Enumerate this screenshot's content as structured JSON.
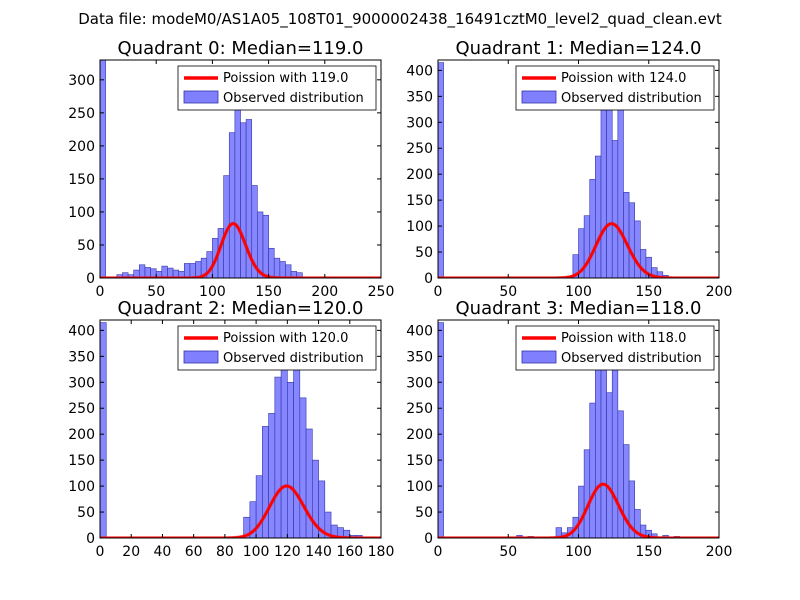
{
  "figure_title": "Data file: modeM0/AS1A05_108T01_9000002438_16491cztM0_level2_quad_clean.evt",
  "colors": {
    "bar_fill": "#8080ff",
    "bar_stroke": "#3333aa",
    "curve": "#ff0000",
    "curve_highlight": "#f08080"
  },
  "chart_data": [
    {
      "type": "bar",
      "title": "Quadrant 0: Median=119.0",
      "xlabel": "",
      "ylabel": "",
      "xlim": [
        0,
        250
      ],
      "ylim": [
        0,
        330
      ],
      "xticks": [
        0,
        50,
        100,
        150,
        200,
        250
      ],
      "yticks": [
        0,
        50,
        100,
        150,
        200,
        250,
        300
      ],
      "xtick_labels": [
        "0",
        "50",
        "100",
        "150",
        "200",
        "250"
      ],
      "ytick_labels": [
        "0",
        "50",
        "100",
        "150",
        "200",
        "250",
        "300"
      ],
      "legend": {
        "position": "top-right",
        "line_label": "Poission with 119.0",
        "bar_label": "Observed distribution"
      },
      "bin_width": 5,
      "bins": [
        [
          0,
          330
        ],
        [
          15,
          5
        ],
        [
          20,
          8
        ],
        [
          25,
          5
        ],
        [
          30,
          12
        ],
        [
          35,
          20
        ],
        [
          40,
          16
        ],
        [
          45,
          14
        ],
        [
          50,
          10
        ],
        [
          55,
          18
        ],
        [
          60,
          15
        ],
        [
          65,
          12
        ],
        [
          70,
          10
        ],
        [
          75,
          22
        ],
        [
          80,
          22
        ],
        [
          85,
          25
        ],
        [
          90,
          30
        ],
        [
          95,
          40
        ],
        [
          100,
          60
        ],
        [
          105,
          75
        ],
        [
          110,
          155
        ],
        [
          115,
          220
        ],
        [
          120,
          300
        ],
        [
          125,
          235
        ],
        [
          130,
          240
        ],
        [
          135,
          140
        ],
        [
          140,
          100
        ],
        [
          145,
          95
        ],
        [
          150,
          45
        ],
        [
          155,
          30
        ],
        [
          160,
          25
        ],
        [
          165,
          20
        ],
        [
          170,
          10
        ],
        [
          175,
          8
        ]
      ],
      "poisson_mean": 119.0,
      "poisson_scale": 2250
    },
    {
      "type": "bar",
      "title": "Quadrant 1: Median=124.0",
      "xlabel": "",
      "ylabel": "",
      "xlim": [
        0,
        200
      ],
      "ylim": [
        0,
        420
      ],
      "xticks": [
        0,
        50,
        100,
        150,
        200
      ],
      "yticks": [
        0,
        50,
        100,
        150,
        200,
        250,
        300,
        350,
        400
      ],
      "xtick_labels": [
        "0",
        "50",
        "100",
        "150",
        "200"
      ],
      "ytick_labels": [
        "0",
        "50",
        "100",
        "150",
        "200",
        "250",
        "300",
        "350",
        "400"
      ],
      "legend": {
        "position": "top-right",
        "line_label": "Poission with 124.0",
        "bar_label": "Observed distribution"
      },
      "bin_width": 4,
      "bins": [
        [
          0,
          415
        ],
        [
          96,
          45
        ],
        [
          100,
          95
        ],
        [
          104,
          120
        ],
        [
          108,
          190
        ],
        [
          112,
          235
        ],
        [
          116,
          330
        ],
        [
          120,
          390
        ],
        [
          124,
          265
        ],
        [
          128,
          390
        ],
        [
          132,
          165
        ],
        [
          136,
          145
        ],
        [
          140,
          110
        ],
        [
          144,
          55
        ],
        [
          148,
          40
        ],
        [
          152,
          20
        ],
        [
          156,
          12
        ],
        [
          160,
          5
        ]
      ],
      "poisson_mean": 124.0,
      "poisson_scale": 2920
    },
    {
      "type": "bar",
      "title": "Quadrant 2: Median=120.0",
      "xlabel": "",
      "ylabel": "",
      "xlim": [
        0,
        180
      ],
      "ylim": [
        0,
        420
      ],
      "xticks": [
        0,
        20,
        40,
        60,
        80,
        100,
        120,
        140,
        160,
        180
      ],
      "yticks": [
        0,
        50,
        100,
        150,
        200,
        250,
        300,
        350,
        400
      ],
      "xtick_labels": [
        "0",
        "20",
        "40",
        "60",
        "80",
        "100",
        "120",
        "140",
        "160",
        "180"
      ],
      "ytick_labels": [
        "0",
        "50",
        "100",
        "150",
        "200",
        "250",
        "300",
        "350",
        "400"
      ],
      "legend": {
        "position": "top-right",
        "line_label": "Poission with 120.0",
        "bar_label": "Observed distribution"
      },
      "bin_width": 4,
      "bins": [
        [
          0,
          415
        ],
        [
          92,
          40
        ],
        [
          96,
          70
        ],
        [
          100,
          120
        ],
        [
          104,
          215
        ],
        [
          108,
          240
        ],
        [
          112,
          310
        ],
        [
          116,
          375
        ],
        [
          120,
          300
        ],
        [
          124,
          390
        ],
        [
          128,
          270
        ],
        [
          132,
          210
        ],
        [
          136,
          150
        ],
        [
          140,
          110
        ],
        [
          144,
          50
        ],
        [
          148,
          25
        ],
        [
          152,
          20
        ],
        [
          156,
          15
        ],
        [
          160,
          5
        ],
        [
          164,
          5
        ]
      ],
      "poisson_mean": 120.0,
      "poisson_scale": 2750
    },
    {
      "type": "bar",
      "title": "Quadrant 3: Median=118.0",
      "xlabel": "",
      "ylabel": "",
      "xlim": [
        0,
        200
      ],
      "ylim": [
        0,
        420
      ],
      "xticks": [
        0,
        50,
        100,
        150,
        200
      ],
      "yticks": [
        0,
        50,
        100,
        150,
        200,
        250,
        300,
        350,
        400
      ],
      "xtick_labels": [
        "0",
        "50",
        "100",
        "150",
        "200"
      ],
      "ytick_labels": [
        "0",
        "50",
        "100",
        "150",
        "200",
        "250",
        "300",
        "350",
        "400"
      ],
      "legend": {
        "position": "top-right",
        "line_label": "Poission with 118.0",
        "bar_label": "Observed distribution"
      },
      "bin_width": 4,
      "bins": [
        [
          0,
          415
        ],
        [
          56,
          5
        ],
        [
          64,
          3
        ],
        [
          84,
          20
        ],
        [
          88,
          10
        ],
        [
          92,
          20
        ],
        [
          96,
          40
        ],
        [
          100,
          100
        ],
        [
          104,
          170
        ],
        [
          108,
          260
        ],
        [
          112,
          345
        ],
        [
          116,
          370
        ],
        [
          120,
          280
        ],
        [
          124,
          385
        ],
        [
          128,
          245
        ],
        [
          132,
          180
        ],
        [
          136,
          110
        ],
        [
          140,
          55
        ],
        [
          144,
          25
        ],
        [
          148,
          15
        ],
        [
          152,
          8
        ],
        [
          160,
          5
        ],
        [
          168,
          3
        ]
      ],
      "poisson_mean": 118.0,
      "poisson_scale": 2820
    }
  ]
}
